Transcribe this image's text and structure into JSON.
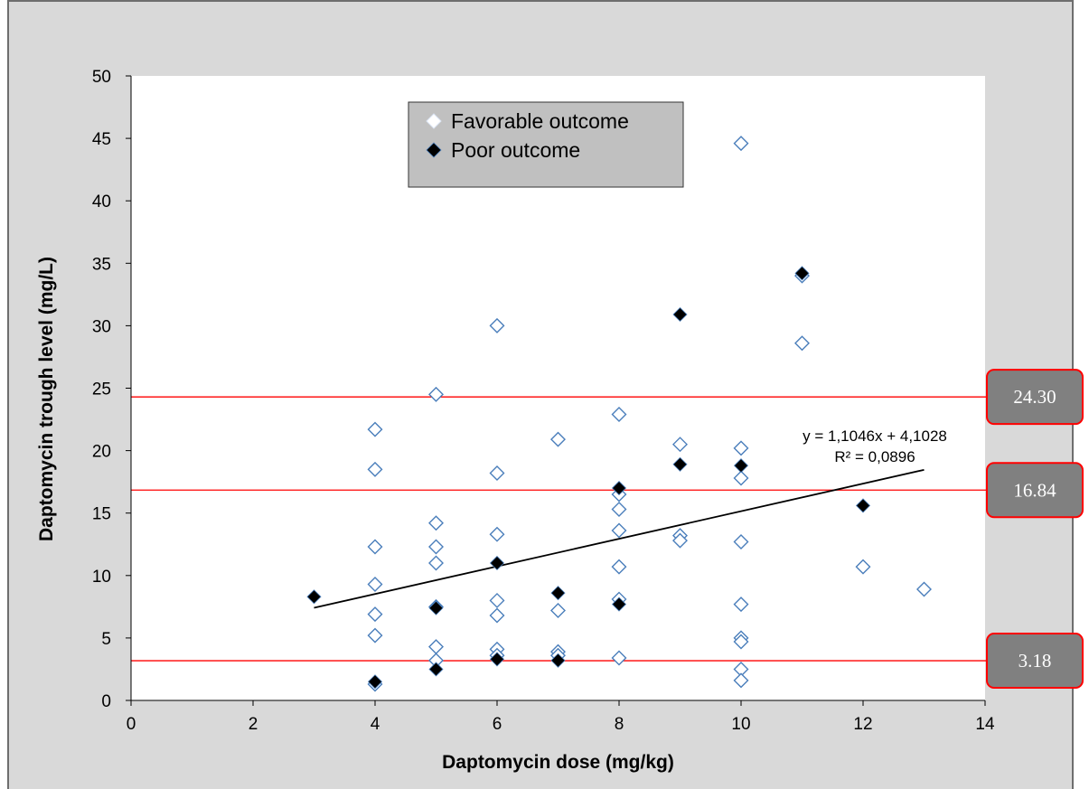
{
  "chart_data": {
    "type": "scatter",
    "xlabel": "Daptomycin dose (mg/kg)",
    "ylabel": "Daptomycin trough level (mg/L)",
    "xlim": [
      0,
      14
    ],
    "ylim": [
      0,
      50
    ],
    "x_ticks": [
      "0",
      "2",
      "4",
      "6",
      "8",
      "10",
      "12",
      "14"
    ],
    "y_ticks": [
      "0",
      "5",
      "10",
      "15",
      "20",
      "25",
      "30",
      "35",
      "40",
      "45",
      "50"
    ],
    "grid": false,
    "legend_position": "top-center",
    "series": [
      {
        "name": "Favorable outcome",
        "marker": "open-diamond",
        "color": "#4a7ebb",
        "points": [
          [
            4,
            21.7
          ],
          [
            4,
            18.5
          ],
          [
            4,
            12.3
          ],
          [
            4,
            9.3
          ],
          [
            4,
            6.9
          ],
          [
            4,
            5.2
          ],
          [
            4,
            1.3
          ],
          [
            5,
            24.5
          ],
          [
            5,
            14.2
          ],
          [
            5,
            12.3
          ],
          [
            5,
            11.0
          ],
          [
            5,
            7.5
          ],
          [
            5,
            4.3
          ],
          [
            5,
            3.2
          ],
          [
            6,
            30.0
          ],
          [
            6,
            18.2
          ],
          [
            6,
            13.3
          ],
          [
            6,
            8.0
          ],
          [
            6,
            6.8
          ],
          [
            6,
            4.1
          ],
          [
            6,
            3.6
          ],
          [
            7,
            20.9
          ],
          [
            7,
            7.2
          ],
          [
            7,
            3.9
          ],
          [
            7,
            3.6
          ],
          [
            8,
            22.9
          ],
          [
            8,
            16.5
          ],
          [
            8,
            15.3
          ],
          [
            8,
            13.6
          ],
          [
            8,
            10.7
          ],
          [
            8,
            8.1
          ],
          [
            8,
            3.4
          ],
          [
            9,
            20.5
          ],
          [
            9,
            13.2
          ],
          [
            9,
            12.8
          ],
          [
            10,
            44.6
          ],
          [
            10,
            20.2
          ],
          [
            10,
            17.8
          ],
          [
            10,
            12.7
          ],
          [
            10,
            7.7
          ],
          [
            10,
            5.0
          ],
          [
            10,
            4.7
          ],
          [
            10,
            2.5
          ],
          [
            10,
            1.6
          ],
          [
            11,
            34.0
          ],
          [
            11,
            28.6
          ],
          [
            12,
            10.7
          ],
          [
            13,
            8.9
          ]
        ]
      },
      {
        "name": "Poor outcome",
        "marker": "filled-diamond",
        "color": "#000000",
        "points": [
          [
            3,
            8.3
          ],
          [
            4,
            1.5
          ],
          [
            5,
            7.4
          ],
          [
            5,
            2.5
          ],
          [
            6,
            11.0
          ],
          [
            6,
            3.3
          ],
          [
            7,
            8.6
          ],
          [
            7,
            3.2
          ],
          [
            8,
            17.0
          ],
          [
            8,
            7.7
          ],
          [
            9,
            30.9
          ],
          [
            9,
            18.9
          ],
          [
            10,
            18.8
          ],
          [
            11,
            34.2
          ],
          [
            12,
            15.6
          ]
        ]
      }
    ],
    "trendline": {
      "x_range": [
        3,
        13
      ],
      "slope": 1.1046,
      "intercept": 4.1028,
      "equation": "y = 1,1046x + 4,1028",
      "r_squared": "R² = 0,0896"
    },
    "reference_lines": [
      {
        "value": 24.3,
        "label": "24.30"
      },
      {
        "value": 16.84,
        "label": "16.84"
      },
      {
        "value": 3.18,
        "label": "3.18"
      }
    ],
    "colors": {
      "outer_background": "#d9d9d9",
      "plot_background": "#ffffff",
      "reference_line": "#ff0000",
      "label_box_fill": "#808080",
      "label_box_border": "#ff0000",
      "legend_fill": "#c0c0c0"
    }
  }
}
